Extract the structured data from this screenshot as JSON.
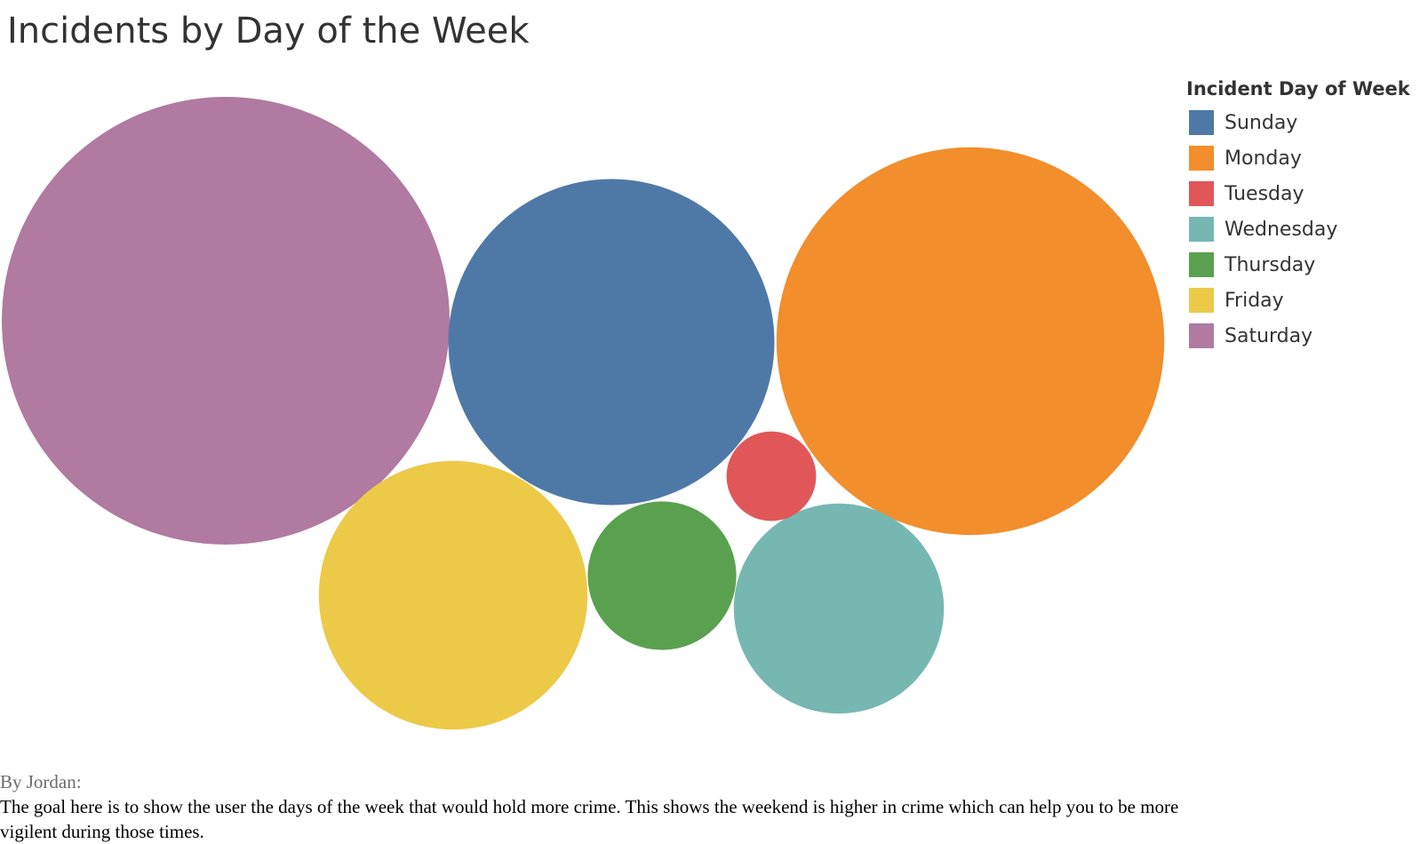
{
  "title": "Incidents by Day of the Week",
  "legend": {
    "title": "Incident Day of Week",
    "items": [
      {
        "label": "Sunday",
        "color": "#4e79a7"
      },
      {
        "label": "Monday",
        "color": "#f28e2b"
      },
      {
        "label": "Tuesday",
        "color": "#e15759"
      },
      {
        "label": "Wednesday",
        "color": "#76b7b2"
      },
      {
        "label": "Thursday",
        "color": "#59a14f"
      },
      {
        "label": "Friday",
        "color": "#edc948"
      },
      {
        "label": "Saturday",
        "color": "#b07aa1"
      }
    ]
  },
  "caption": {
    "byline": "By Jordan:",
    "description": " The goal here is to show the user the days of the week that would hold more crime. This shows the weekend is higher in crime which can help you to be more vigilent during those times."
  },
  "chart_data": {
    "type": "bubble",
    "title": "Incidents by Day of the Week",
    "size_measure": "incident count (relative bubble area; no values printed)",
    "series": [
      {
        "name": "Saturday",
        "relative_size": 100,
        "color": "#b07aa1"
      },
      {
        "name": "Monday",
        "relative_size": 75,
        "color": "#f28e2b"
      },
      {
        "name": "Sunday",
        "relative_size": 53,
        "color": "#4e79a7"
      },
      {
        "name": "Friday",
        "relative_size": 36,
        "color": "#edc948"
      },
      {
        "name": "Wednesday",
        "relative_size": 22,
        "color": "#76b7b2"
      },
      {
        "name": "Thursday",
        "relative_size": 11,
        "color": "#59a14f"
      },
      {
        "name": "Tuesday",
        "relative_size": 4,
        "color": "#e15759"
      }
    ]
  }
}
